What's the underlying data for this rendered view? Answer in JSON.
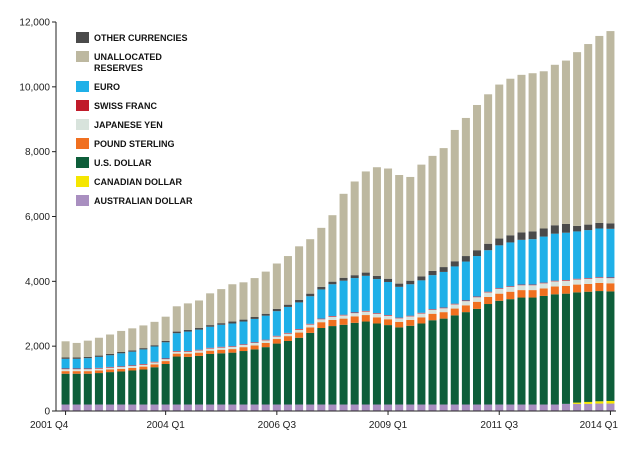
{
  "chart_data": {
    "type": "bar",
    "stacked": true,
    "title": "",
    "xlabel": "",
    "ylabel": "",
    "ylim": [
      0,
      12000
    ],
    "yticks": [
      0,
      2000,
      4000,
      6000,
      8000,
      10000,
      12000
    ],
    "ytick_labels": [
      "0",
      "2,000",
      "4,000",
      "6,000",
      "8,000",
      "10,000",
      "12,000"
    ],
    "xtick_labels": [
      {
        "label": "2001 Q4",
        "index": 0
      },
      {
        "label": "2004 Q1",
        "index": 9
      },
      {
        "label": "2006 Q3",
        "index": 19
      },
      {
        "label": "2009 Q1",
        "index": 29
      },
      {
        "label": "2011 Q3",
        "index": 39
      },
      {
        "label": "2014 Q1",
        "index": 49
      }
    ],
    "legend_position": "top-left",
    "categories": [
      "2001 Q4",
      "2002 Q1",
      "2002 Q2",
      "2002 Q3",
      "2002 Q4",
      "2003 Q1",
      "2003 Q2",
      "2003 Q3",
      "2003 Q4",
      "2004 Q1",
      "2004 Q2",
      "2004 Q3",
      "2004 Q4",
      "2005 Q1",
      "2005 Q2",
      "2005 Q3",
      "2005 Q4",
      "2006 Q1",
      "2006 Q2",
      "2006 Q3",
      "2006 Q4",
      "2007 Q1",
      "2007 Q2",
      "2007 Q3",
      "2007 Q4",
      "2008 Q1",
      "2008 Q2",
      "2008 Q3",
      "2008 Q4",
      "2009 Q1",
      "2009 Q2",
      "2009 Q3",
      "2009 Q4",
      "2010 Q1",
      "2010 Q2",
      "2010 Q3",
      "2010 Q4",
      "2011 Q1",
      "2011 Q2",
      "2011 Q3",
      "2011 Q4",
      "2012 Q1",
      "2012 Q2",
      "2012 Q3",
      "2012 Q4",
      "2013 Q1",
      "2013 Q2",
      "2013 Q3",
      "2013 Q4",
      "2014 Q1"
    ],
    "series": [
      {
        "name": "AUSTRALIAN DOLLAR",
        "color": "#a98fc0",
        "values": [
          200,
          200,
          200,
          200,
          200,
          200,
          200,
          200,
          200,
          200,
          200,
          200,
          200,
          200,
          200,
          200,
          200,
          200,
          200,
          200,
          200,
          200,
          200,
          200,
          200,
          200,
          200,
          200,
          200,
          200,
          200,
          200,
          200,
          200,
          200,
          200,
          200,
          200,
          200,
          200,
          200,
          200,
          200,
          200,
          200,
          220,
          220,
          220,
          230,
          230
        ]
      },
      {
        "name": "CANADIAN DOLLAR",
        "color": "#f5e600",
        "values": [
          0,
          0,
          0,
          0,
          0,
          0,
          0,
          0,
          0,
          0,
          0,
          0,
          0,
          0,
          0,
          0,
          0,
          0,
          0,
          0,
          0,
          0,
          0,
          0,
          0,
          0,
          0,
          0,
          0,
          0,
          0,
          0,
          0,
          0,
          0,
          0,
          0,
          0,
          0,
          0,
          0,
          0,
          0,
          0,
          0,
          0,
          40,
          60,
          70,
          80
        ]
      },
      {
        "name": "U.S. DOLLAR",
        "color": "#0e5e3a",
        "values": [
          950,
          950,
          950,
          970,
          1000,
          1020,
          1050,
          1080,
          1150,
          1250,
          1480,
          1470,
          1500,
          1560,
          1580,
          1600,
          1650,
          1700,
          1770,
          1880,
          1960,
          2060,
          2210,
          2360,
          2420,
          2460,
          2520,
          2560,
          2500,
          2450,
          2380,
          2430,
          2500,
          2600,
          2650,
          2750,
          2850,
          2950,
          3100,
          3200,
          3250,
          3300,
          3300,
          3350,
          3400,
          3400,
          3400,
          3400,
          3400,
          3380
        ]
      },
      {
        "name": "POUND STERLING",
        "color": "#f07020",
        "values": [
          80,
          80,
          80,
          80,
          80,
          80,
          80,
          90,
          90,
          90,
          90,
          100,
          100,
          100,
          110,
          110,
          120,
          120,
          130,
          140,
          150,
          160,
          170,
          180,
          190,
          190,
          200,
          200,
          190,
          180,
          170,
          180,
          190,
          200,
          200,
          210,
          210,
          220,
          220,
          220,
          230,
          230,
          230,
          230,
          240,
          240,
          240,
          240,
          250,
          250
        ]
      },
      {
        "name": "JAPANESE YEN",
        "color": "#d8e3dc",
        "values": [
          60,
          60,
          60,
          60,
          60,
          60,
          60,
          60,
          60,
          60,
          60,
          60,
          70,
          70,
          70,
          70,
          70,
          80,
          80,
          80,
          80,
          90,
          90,
          90,
          100,
          100,
          100,
          110,
          110,
          110,
          110,
          110,
          120,
          120,
          120,
          130,
          130,
          140,
          140,
          150,
          150,
          150,
          150,
          160,
          160,
          160,
          160,
          160,
          160,
          160
        ]
      },
      {
        "name": "SWISS FRANC",
        "color": "#c01b2a",
        "values": [
          20,
          20,
          20,
          20,
          20,
          20,
          20,
          20,
          20,
          20,
          20,
          20,
          20,
          20,
          20,
          20,
          20,
          20,
          20,
          20,
          20,
          20,
          20,
          20,
          20,
          20,
          20,
          20,
          20,
          20,
          20,
          20,
          20,
          20,
          20,
          20,
          20,
          20,
          20,
          20,
          20,
          20,
          20,
          20,
          20,
          20,
          20,
          20,
          20,
          20
        ]
      },
      {
        "name": "EURO",
        "color": "#1fb0e8",
        "values": [
          300,
          300,
          320,
          340,
          360,
          400,
          420,
          450,
          470,
          500,
          550,
          600,
          620,
          650,
          680,
          700,
          700,
          720,
          740,
          760,
          800,
          820,
          850,
          900,
          980,
          1050,
          1060,
          1080,
          1050,
          1020,
          950,
          970,
          1000,
          1050,
          1100,
          1150,
          1200,
          1250,
          1280,
          1320,
          1350,
          1380,
          1400,
          1420,
          1450,
          1460,
          1460,
          1480,
          1500,
          1500
        ]
      },
      {
        "name": "OTHER CURRENCIES",
        "color": "#4a4a4a",
        "values": [
          40,
          40,
          40,
          40,
          40,
          40,
          40,
          40,
          40,
          40,
          50,
          50,
          50,
          50,
          50,
          60,
          60,
          60,
          60,
          70,
          70,
          80,
          80,
          80,
          80,
          90,
          90,
          100,
          100,
          100,
          100,
          110,
          120,
          130,
          150,
          160,
          170,
          180,
          200,
          210,
          220,
          230,
          240,
          250,
          260,
          270,
          170,
          170,
          170,
          170
        ]
      },
      {
        "name": "UNALLOCATED RESERVES",
        "color": "#bdb8a0",
        "values": [
          500,
          450,
          500,
          550,
          600,
          650,
          680,
          700,
          720,
          750,
          780,
          820,
          850,
          980,
          1050,
          1150,
          1150,
          1200,
          1300,
          1400,
          1500,
          1650,
          1680,
          1820,
          2050,
          2590,
          2890,
          3120,
          3350,
          3400,
          3350,
          3200,
          3450,
          3550,
          3670,
          4050,
          4260,
          4480,
          4610,
          4750,
          4830,
          4860,
          4880,
          4850,
          4950,
          5040,
          5360,
          5570,
          5770,
          5930
        ]
      }
    ],
    "legend_order": [
      "OTHER CURRENCIES",
      "UNALLOCATED RESERVES",
      "EURO",
      "SWISS FRANC",
      "JAPANESE YEN",
      "POUND STERLING",
      "U.S. DOLLAR",
      "CANADIAN DOLLAR",
      "AUSTRALIAN DOLLAR"
    ],
    "legend_labels": {
      "OTHER CURRENCIES": [
        "OTHER CURRENCIES"
      ],
      "UNALLOCATED RESERVES": [
        "UNALLOCATED",
        "RESERVES"
      ],
      "EURO": [
        "EURO"
      ],
      "SWISS FRANC": [
        "SWISS FRANC"
      ],
      "JAPANESE YEN": [
        "JAPANESE YEN"
      ],
      "POUND STERLING": [
        "POUND STERLING"
      ],
      "U.S. DOLLAR": [
        "U.S. DOLLAR"
      ],
      "CANADIAN DOLLAR": [
        "CANADIAN DOLLAR"
      ],
      "AUSTRALIAN DOLLAR": [
        "AUSTRALIAN DOLLAR"
      ]
    }
  }
}
